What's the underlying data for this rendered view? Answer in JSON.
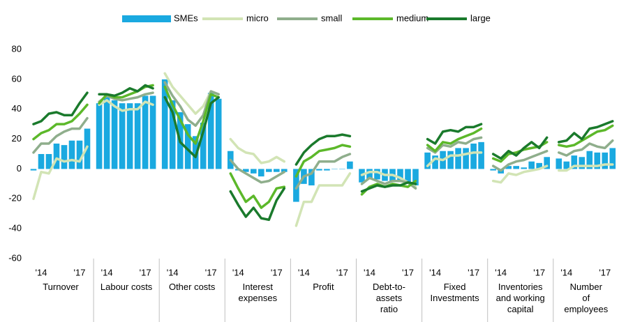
{
  "chart_data": {
    "type": "bar-line",
    "ylim": [
      -60,
      80
    ],
    "yticks": [
      -60,
      -40,
      -20,
      0,
      20,
      40,
      60,
      80
    ],
    "grid": false,
    "legend": "top",
    "periods": [
      null,
      "'14",
      null,
      null,
      null,
      null,
      "'17",
      null
    ],
    "groups": [
      "Turnover",
      "Labour costs",
      "Other costs",
      "Interest\nexpenses",
      "Profit",
      "Debt-to-\nassets\nratio",
      "Fixed\nInvestments",
      "Inventories\nand working\ncapital",
      "Number\nof\nemployees"
    ],
    "series": [
      {
        "name": "SMEs",
        "kind": "bar",
        "color": "#1aa9e0",
        "values": [
          [
            -1,
            10,
            10,
            17,
            16,
            19,
            19,
            27
          ],
          [
            44,
            48,
            46,
            44,
            44,
            44,
            49,
            49
          ],
          [
            60,
            46,
            38,
            30,
            22,
            31,
            51,
            47
          ],
          [
            12,
            -1,
            -2,
            -3,
            -5,
            -2,
            -2,
            -2
          ],
          [
            -22,
            -10,
            -11,
            -1,
            -1,
            0,
            0,
            5
          ],
          [
            -9,
            -7,
            -7,
            -8,
            -8,
            -8,
            -10,
            -11
          ],
          [
            11,
            9,
            12,
            12,
            14,
            14,
            17,
            18
          ],
          [
            -1,
            -3,
            2,
            2,
            1,
            5,
            4,
            8
          ],
          [
            7,
            5,
            9,
            8,
            12,
            11,
            11,
            14
          ]
        ]
      },
      {
        "name": "micro",
        "kind": "line",
        "color": "#d2e4b5",
        "values": [
          [
            -20,
            -2,
            -3,
            7,
            5,
            6,
            5,
            15
          ],
          [
            43,
            46,
            42,
            39,
            40,
            40,
            45,
            43
          ],
          [
            64,
            55,
            49,
            43,
            37,
            42,
            52,
            50
          ],
          [
            20,
            14,
            11,
            10,
            4,
            5,
            8,
            5
          ],
          [
            -38,
            -22,
            -22,
            -11,
            -11,
            -11,
            -11,
            -3
          ],
          [
            -4,
            -2,
            -2,
            -4,
            -4,
            -6,
            -9,
            -12
          ],
          [
            2,
            7,
            6,
            9,
            9,
            10,
            11,
            11
          ],
          [
            -8,
            -9,
            -3,
            -4,
            -2,
            -1,
            0,
            2
          ],
          [
            -1,
            -1,
            2,
            2,
            2,
            2,
            3,
            3
          ]
        ]
      },
      {
        "name": "small",
        "kind": "line",
        "color": "#8fae8c",
        "values": [
          [
            11,
            17,
            17,
            22,
            25,
            27,
            27,
            34
          ],
          [
            45,
            49,
            47,
            46,
            47,
            48,
            50,
            51
          ],
          [
            58,
            49,
            42,
            33,
            29,
            36,
            52,
            50
          ],
          [
            6,
            0,
            -3,
            -6,
            -9,
            -8,
            -5,
            -2
          ],
          [
            -13,
            -5,
            -3,
            5,
            5,
            5,
            8,
            10
          ],
          [
            -10,
            -6,
            -8,
            -10,
            -8,
            -8,
            -9,
            -13
          ],
          [
            14,
            11,
            16,
            15,
            18,
            17,
            20,
            21
          ],
          [
            2,
            -1,
            3,
            5,
            6,
            8,
            10,
            12
          ],
          [
            11,
            9,
            12,
            13,
            17,
            15,
            14,
            19
          ]
        ]
      },
      {
        "name": "medium",
        "kind": "line",
        "color": "#5cb82a",
        "values": [
          [
            20,
            24,
            26,
            30,
            30,
            32,
            37,
            43
          ],
          [
            44,
            50,
            48,
            48,
            50,
            52,
            55,
            56
          ],
          [
            55,
            43,
            33,
            23,
            17,
            32,
            50,
            48
          ],
          [
            -3,
            -13,
            -22,
            -18,
            -26,
            -22,
            -13,
            -12
          ],
          [
            -5,
            5,
            8,
            12,
            13,
            14,
            16,
            15
          ],
          [
            -17,
            -12,
            -10,
            -12,
            -10,
            -11,
            -12,
            -8
          ],
          [
            16,
            12,
            18,
            17,
            20,
            22,
            24,
            27
          ],
          [
            7,
            5,
            10,
            11,
            13,
            14,
            15,
            18
          ],
          [
            16,
            15,
            16,
            19,
            22,
            25,
            26,
            29
          ]
        ]
      },
      {
        "name": "large",
        "kind": "line",
        "color": "#1a7a2c",
        "values": [
          [
            30,
            32,
            37,
            38,
            36,
            36,
            44,
            51
          ],
          [
            50,
            50,
            49,
            51,
            54,
            52,
            56,
            54
          ],
          [
            48,
            38,
            18,
            13,
            8,
            25,
            44,
            48
          ],
          [
            -15,
            -24,
            -32,
            -26,
            -33,
            -34,
            -21,
            -13
          ],
          [
            3,
            11,
            16,
            20,
            22,
            22,
            23,
            22
          ],
          [
            -15,
            -13,
            -11,
            -12,
            -11,
            -11,
            -9,
            -10
          ],
          [
            20,
            17,
            25,
            26,
            25,
            28,
            28,
            30
          ],
          [
            10,
            7,
            12,
            9,
            14,
            18,
            14,
            21
          ],
          [
            18,
            19,
            24,
            20,
            27,
            28,
            30,
            32
          ]
        ]
      }
    ]
  }
}
